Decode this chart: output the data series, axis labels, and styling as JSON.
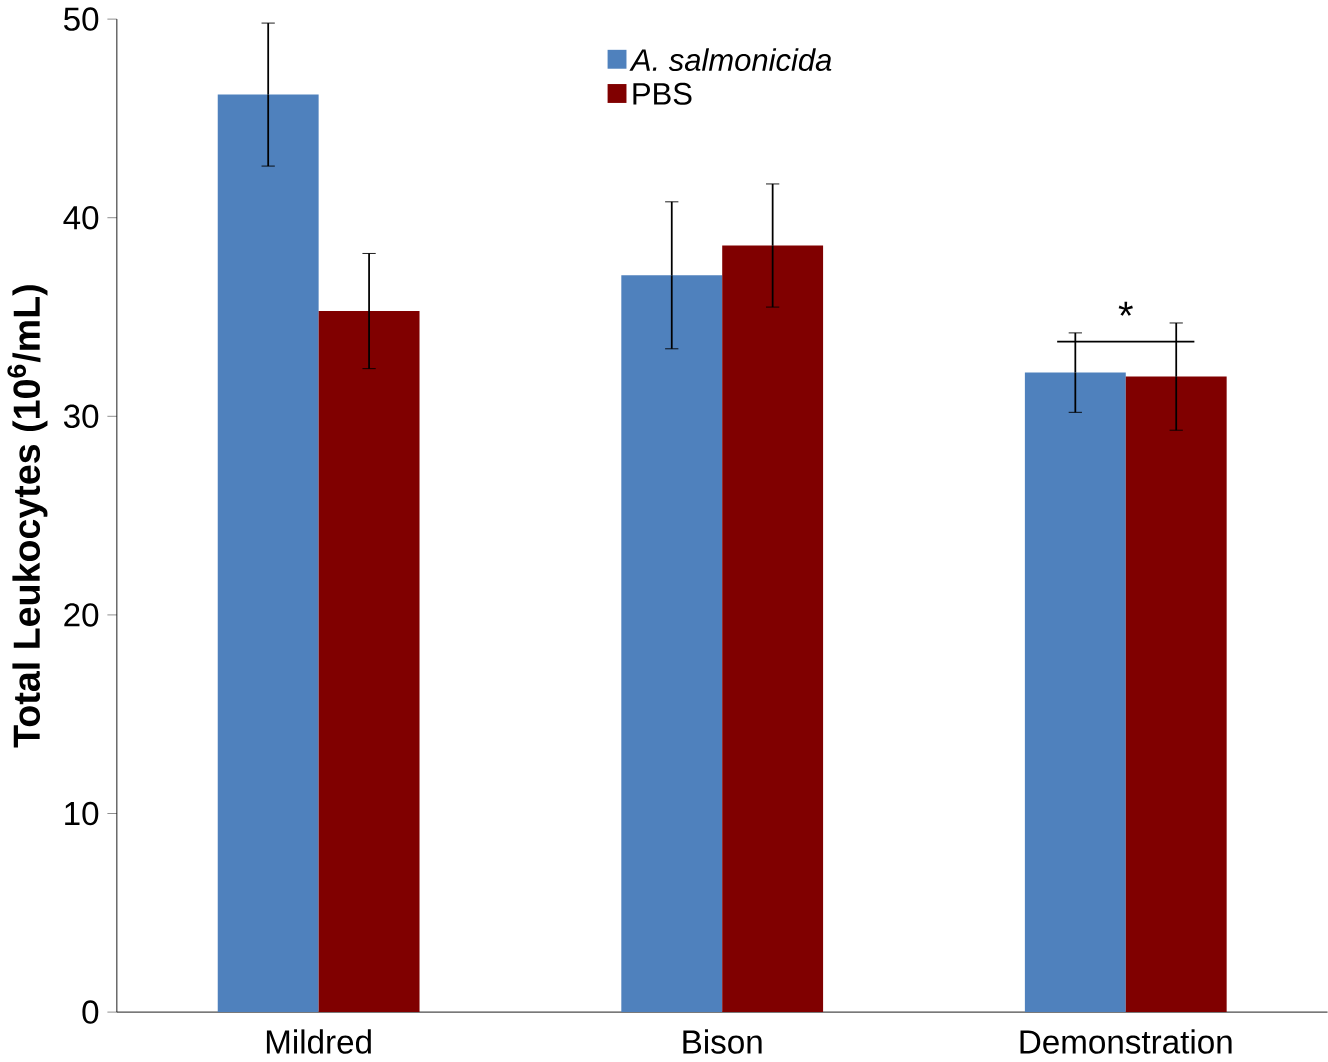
{
  "chart_data": {
    "type": "bar",
    "ylabel": "Total Leukocytes (10$^{6}$/mL)",
    "categories": [
      "Mildred",
      "Bison",
      "Demonstration"
    ],
    "series": [
      {
        "name": "*A. salmonicida*",
        "color": "#4f81bd",
        "values": [
          46.2,
          37.1,
          32.2
        ],
        "errors": [
          3.6,
          3.7,
          2.0
        ]
      },
      {
        "name": "PBS",
        "color": "#800000",
        "values": [
          35.3,
          38.6,
          32.0
        ],
        "errors": [
          2.9,
          3.1,
          2.7
        ]
      }
    ],
    "ylim": [
      0,
      50
    ],
    "yticks": [
      0,
      10,
      20,
      30,
      40,
      50
    ],
    "grid": false,
    "legend": "top",
    "annotations": [
      "*"
    ]
  }
}
